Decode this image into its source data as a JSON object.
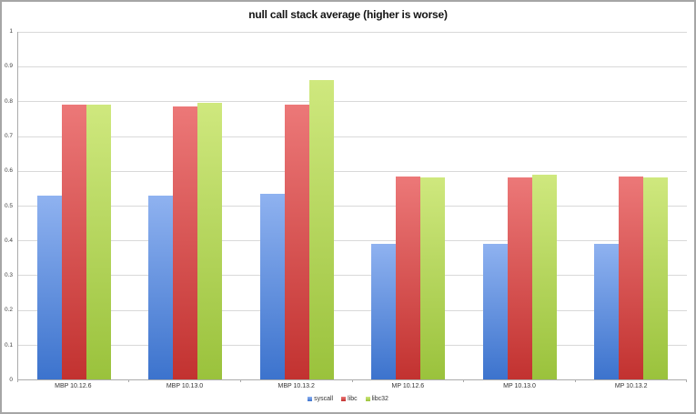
{
  "chart_data": {
    "type": "bar",
    "title": "null call stack average (higher is worse)",
    "categories": [
      "MBP 10.12.6",
      "MBP 10.13.0",
      "MBP 10.13.2",
      "MP 10.12.6",
      "MP 10.13.0",
      "MP 10.13.2"
    ],
    "series": [
      {
        "name": "syscall",
        "values": [
          0.53,
          0.53,
          0.535,
          0.39,
          0.39,
          0.39
        ],
        "color_top": "#8fb2f0",
        "color_bottom": "#3c73cd"
      },
      {
        "name": "libc",
        "values": [
          0.79,
          0.785,
          0.79,
          0.585,
          0.582,
          0.585
        ],
        "color_top": "#ec7878",
        "color_bottom": "#c23230"
      },
      {
        "name": "libc32",
        "values": [
          0.79,
          0.795,
          0.86,
          0.582,
          0.59,
          0.582
        ],
        "color_top": "#cfe87e",
        "color_bottom": "#9ac23c"
      }
    ],
    "ylim": [
      0,
      1
    ],
    "yticks": [
      "0",
      "0.1",
      "0.2",
      "0.3",
      "0.4",
      "0.5",
      "0.6",
      "0.7",
      "0.8",
      "0.9",
      "1"
    ],
    "grid": "horizontal",
    "legend_position": "bottom-center",
    "colors": {
      "gridline": "#d9d9d9",
      "axis": "#ababab",
      "frame_border": "#a6a6a6",
      "title_text": "#141414",
      "tick_text": "#404040"
    }
  }
}
